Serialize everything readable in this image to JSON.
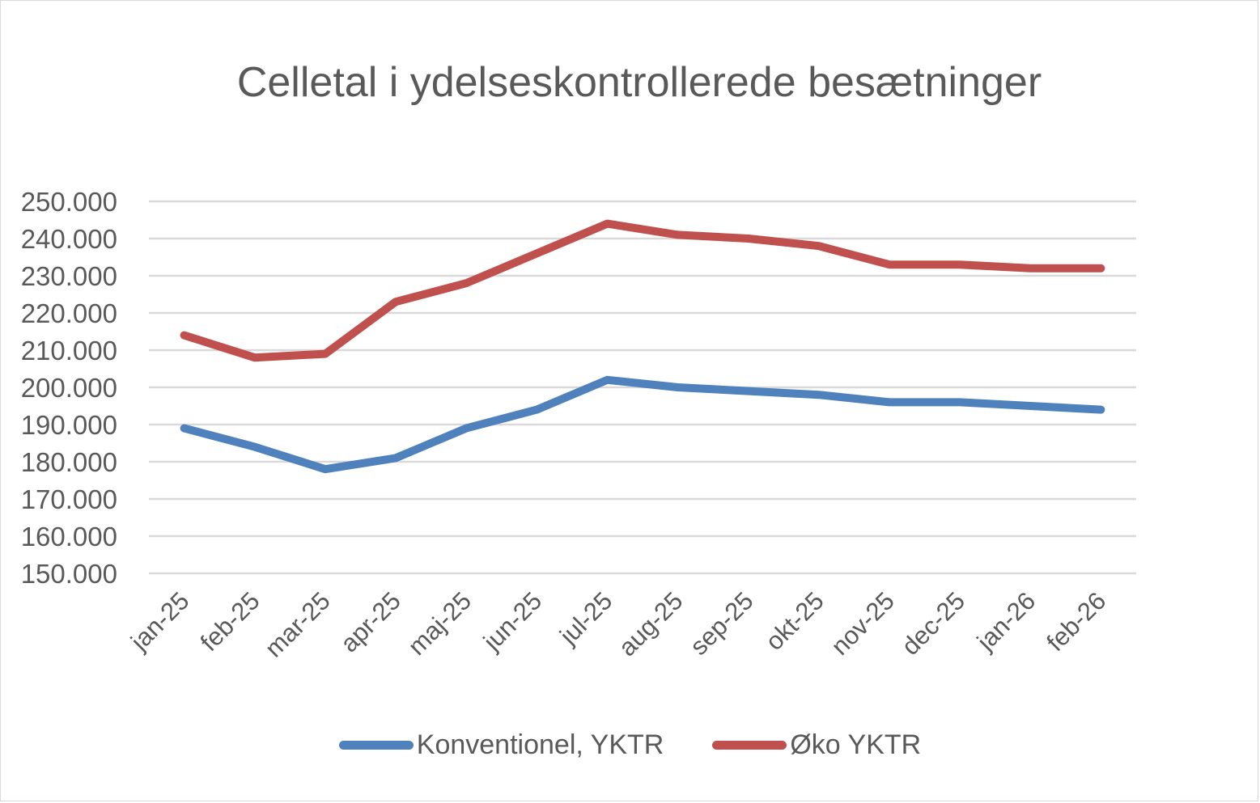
{
  "chart_data": {
    "type": "line",
    "title": "Celletal i ydelseskontrollerede besætninger",
    "xlabel": "",
    "ylabel": "",
    "categories": [
      "jan-25",
      "feb-25",
      "mar-25",
      "apr-25",
      "maj-25",
      "jun-25",
      "jul-25",
      "aug-25",
      "sep-25",
      "okt-25",
      "nov-25",
      "dec-25",
      "jan-26",
      "feb-26"
    ],
    "series": [
      {
        "name": "Konventionel, YKTR",
        "color": "#4f81bd",
        "values": [
          189000,
          184000,
          178000,
          181000,
          189000,
          194000,
          202000,
          200000,
          199000,
          198000,
          196000,
          196000,
          195000,
          194000
        ]
      },
      {
        "name": "Øko YKTR",
        "color": "#c0504d",
        "values": [
          214000,
          208000,
          209000,
          223000,
          228000,
          236000,
          244000,
          241000,
          240000,
          238000,
          233000,
          233000,
          232000,
          232000
        ]
      }
    ],
    "ylim": [
      150000,
      250000
    ],
    "yticks": [
      "250.000",
      "240.000",
      "230.000",
      "220.000",
      "210.000",
      "200.000",
      "190.000",
      "180.000",
      "170.000",
      "160.000",
      "150.000"
    ],
    "grid": true,
    "legend_position": "bottom"
  }
}
